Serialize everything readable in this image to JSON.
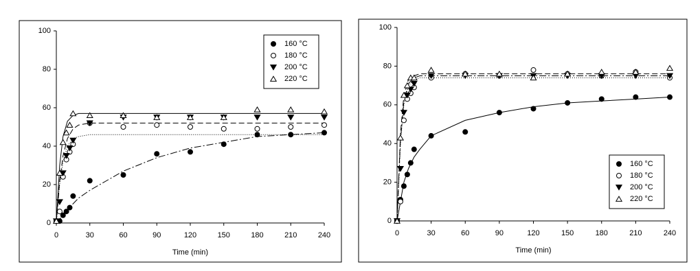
{
  "chart_data": [
    {
      "type": "scatter",
      "xlabel": "Time (min)",
      "xlim": [
        0,
        240
      ],
      "ylim": [
        0,
        100
      ],
      "xticks": [
        0,
        30,
        60,
        90,
        120,
        150,
        180,
        210,
        240
      ],
      "yticks": [
        0,
        20,
        40,
        60,
        80,
        100
      ],
      "legend": "upper right",
      "color": "#000000",
      "x": [
        0,
        3,
        6,
        9,
        12,
        15,
        30,
        60,
        90,
        120,
        150,
        180,
        210,
        240
      ],
      "series": [
        {
          "name": "160 °C",
          "marker": "circle-filled",
          "values": [
            1,
            1,
            4,
            6,
            8,
            14,
            22,
            25,
            36,
            37,
            41,
            46,
            46,
            47
          ]
        },
        {
          "name": "180 °C",
          "marker": "circle-open",
          "values": [
            1,
            6,
            24,
            33,
            37,
            41,
            52,
            50,
            51,
            50,
            49,
            49,
            50,
            51
          ]
        },
        {
          "name": "200 °C",
          "marker": "triangle-down-filled",
          "values": [
            1,
            11,
            26,
            35,
            39,
            43,
            52,
            55,
            55,
            55,
            55,
            55,
            55,
            55
          ]
        },
        {
          "name": "220 °C",
          "marker": "triangle-up-open",
          "values": [
            1,
            26,
            42,
            47,
            51,
            57,
            56,
            56,
            55,
            55,
            55,
            59,
            59,
            58
          ]
        }
      ],
      "fit_x": [
        0,
        3,
        6,
        10,
        15,
        20,
        30,
        60,
        90,
        120,
        150,
        180,
        210,
        240
      ],
      "fits": [
        {
          "dash": "10 3 2 3",
          "values": [
            0,
            2,
            4,
            7,
            10,
            13,
            17,
            27,
            34,
            39,
            42,
            45,
            46,
            47
          ]
        },
        {
          "dash": "1 2",
          "values": [
            0,
            20,
            32,
            40,
            44,
            45,
            46,
            46,
            46,
            46,
            46,
            46,
            46,
            46
          ]
        },
        {
          "dash": "8 4",
          "values": [
            0,
            22,
            35,
            44,
            49,
            51,
            52,
            52,
            52,
            52,
            52,
            52,
            52,
            52
          ]
        },
        {
          "dash": "none",
          "values": [
            0,
            30,
            45,
            53,
            56,
            57,
            57,
            57,
            57,
            57,
            57,
            57,
            57,
            57
          ]
        }
      ]
    },
    {
      "type": "scatter",
      "xlabel": "Time (min)",
      "xlim": [
        0,
        240
      ],
      "ylim": [
        0,
        100
      ],
      "xticks": [
        0,
        30,
        60,
        90,
        120,
        150,
        180,
        210,
        240
      ],
      "yticks": [
        0,
        20,
        40,
        60,
        80,
        100
      ],
      "legend": "lower right",
      "color": "#000000",
      "x": [
        0,
        3,
        6,
        9,
        12,
        15,
        30,
        60,
        90,
        120,
        150,
        180,
        210,
        240
      ],
      "series": [
        {
          "name": "160 °C",
          "marker": "circle-filled",
          "values": [
            0,
            11,
            18,
            24,
            30,
            37,
            44,
            46,
            56,
            58,
            61,
            63,
            64,
            64
          ]
        },
        {
          "name": "180 °C",
          "marker": "circle-open",
          "values": [
            0,
            10,
            52,
            63,
            66,
            69,
            74,
            76,
            75,
            78,
            76,
            75,
            77,
            74
          ]
        },
        {
          "name": "200 °C",
          "marker": "triangle-down-filled",
          "values": [
            0,
            27,
            56,
            65,
            68,
            71,
            75,
            75,
            75,
            75,
            75,
            75,
            75,
            75
          ]
        },
        {
          "name": "220 °C",
          "marker": "triangle-up-open",
          "values": [
            0,
            43,
            65,
            70,
            74,
            74,
            78,
            76,
            76,
            74,
            76,
            77,
            77,
            79
          ]
        }
      ],
      "fit_x": [
        0,
        3,
        6,
        10,
        15,
        20,
        30,
        60,
        90,
        120,
        150,
        180,
        210,
        240
      ],
      "fits": [
        {
          "dash": "none",
          "values": [
            0,
            10,
            20,
            27,
            33,
            37,
            44,
            52,
            56,
            59,
            61,
            62,
            63,
            64
          ]
        },
        {
          "dash": "1 2",
          "values": [
            0,
            40,
            60,
            70,
            73,
            74,
            74,
            74,
            74,
            74,
            74,
            74,
            74,
            74
          ]
        },
        {
          "dash": "10 3 2 3",
          "values": [
            0,
            42,
            62,
            71,
            74,
            75,
            75,
            75,
            75,
            75,
            75,
            75,
            75,
            75
          ]
        },
        {
          "dash": "8 4",
          "values": [
            0,
            45,
            65,
            73,
            75,
            76,
            76,
            76,
            76,
            76,
            76,
            76,
            76,
            76
          ]
        }
      ]
    }
  ]
}
